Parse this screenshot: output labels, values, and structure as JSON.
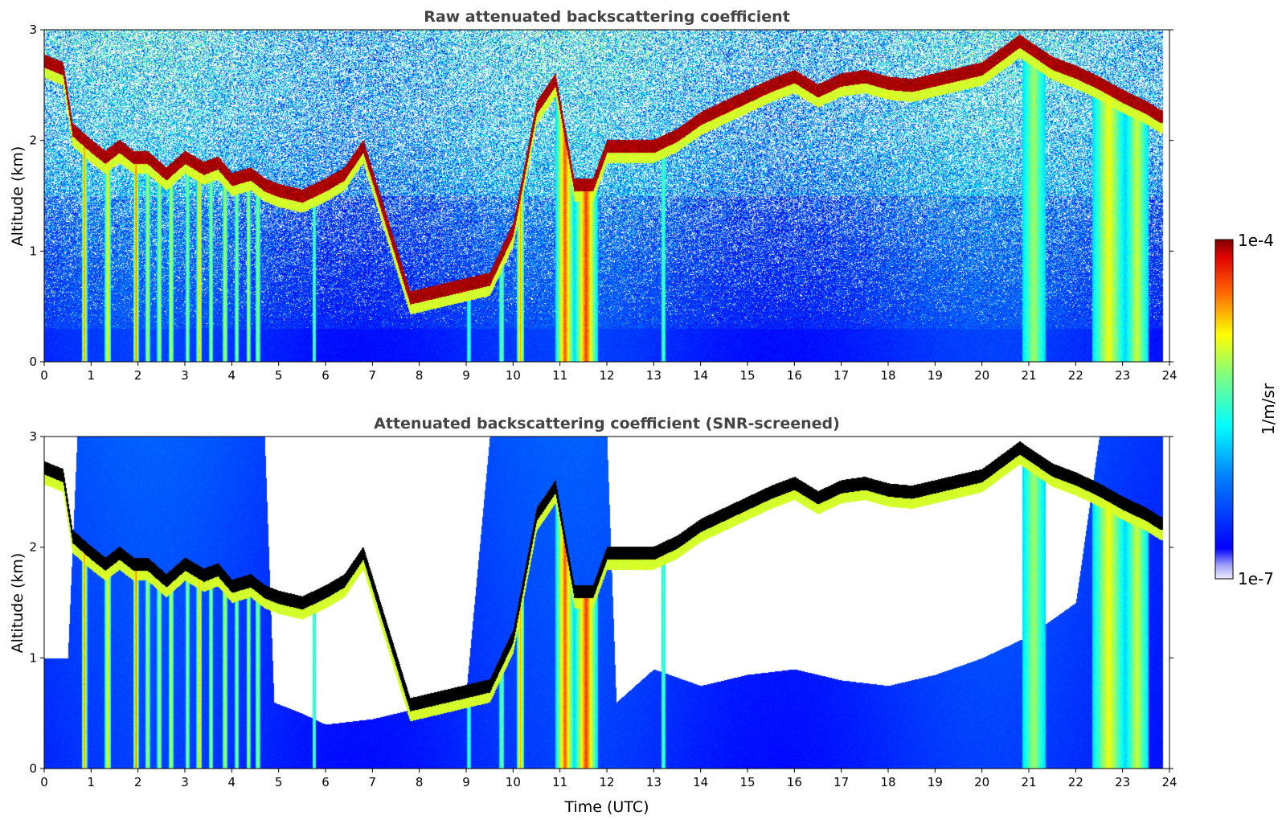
{
  "chart_data": [
    {
      "type": "heatmap",
      "title": "Raw attenuated backscattering coefficient",
      "xlabel": "",
      "ylabel": "Altitude (km)",
      "xlim": [
        0,
        24
      ],
      "ylim": [
        0,
        3
      ],
      "xticks": [
        "0",
        "1",
        "2",
        "3",
        "4",
        "5",
        "6",
        "7",
        "8",
        "9",
        "10",
        "11",
        "12",
        "13",
        "14",
        "15",
        "16",
        "17",
        "18",
        "19",
        "20",
        "21",
        "22",
        "23",
        "24"
      ],
      "yticks": [
        "0",
        "1",
        "2",
        "3"
      ],
      "screened": false
    },
    {
      "type": "heatmap",
      "title": "Attenuated backscattering coefficient (SNR-screened)",
      "xlabel": "Time (UTC)",
      "ylabel": "Altitude (km)",
      "xlim": [
        0,
        24
      ],
      "ylim": [
        0,
        3
      ],
      "xticks": [
        "0",
        "1",
        "2",
        "3",
        "4",
        "5",
        "6",
        "7",
        "8",
        "9",
        "10",
        "11",
        "12",
        "13",
        "14",
        "15",
        "16",
        "17",
        "18",
        "19",
        "20",
        "21",
        "22",
        "23",
        "24"
      ],
      "yticks": [
        "0",
        "1",
        "2",
        "3"
      ],
      "screened": true
    }
  ],
  "colorbar": {
    "label": "1/m/sr",
    "max_label": "1e-4",
    "min_label": "1e-7",
    "colormap": "jet",
    "scale": "log"
  },
  "scene": {
    "cloud_layer": [
      [
        0.0,
        2.72
      ],
      [
        0.4,
        2.65
      ],
      [
        0.6,
        2.1
      ],
      [
        1.0,
        1.95
      ],
      [
        1.3,
        1.85
      ],
      [
        1.6,
        1.95
      ],
      [
        1.9,
        1.85
      ],
      [
        2.2,
        1.85
      ],
      [
        2.6,
        1.7
      ],
      [
        3.0,
        1.85
      ],
      [
        3.4,
        1.75
      ],
      [
        3.7,
        1.8
      ],
      [
        4.0,
        1.65
      ],
      [
        4.4,
        1.7
      ],
      [
        4.7,
        1.6
      ],
      [
        5.0,
        1.55
      ],
      [
        5.5,
        1.5
      ],
      [
        6.0,
        1.6
      ],
      [
        6.4,
        1.7
      ],
      [
        6.8,
        1.95
      ],
      [
        7.8,
        0.58
      ],
      [
        8.5,
        0.65
      ],
      [
        9.0,
        0.7
      ],
      [
        9.5,
        0.75
      ],
      [
        10.0,
        1.2
      ],
      [
        10.5,
        2.3
      ],
      [
        10.9,
        2.55
      ],
      [
        11.3,
        1.6
      ],
      [
        11.7,
        1.6
      ],
      [
        12.0,
        1.95
      ],
      [
        13.0,
        1.95
      ],
      [
        13.5,
        2.05
      ],
      [
        14.0,
        2.2
      ],
      [
        14.5,
        2.3
      ],
      [
        15.0,
        2.4
      ],
      [
        15.5,
        2.5
      ],
      [
        16.0,
        2.58
      ],
      [
        16.5,
        2.45
      ],
      [
        17.0,
        2.55
      ],
      [
        17.5,
        2.58
      ],
      [
        18.0,
        2.52
      ],
      [
        18.5,
        2.5
      ],
      [
        19.0,
        2.55
      ],
      [
        20.0,
        2.65
      ],
      [
        20.8,
        2.9
      ],
      [
        21.5,
        2.7
      ],
      [
        22.0,
        2.62
      ],
      [
        22.5,
        2.52
      ],
      [
        23.0,
        2.4
      ],
      [
        23.5,
        2.3
      ],
      [
        23.8,
        2.22
      ]
    ],
    "precip_shafts": [
      [
        0.85,
        0.06,
        4.0
      ],
      [
        1.35,
        0.07,
        3.2
      ],
      [
        1.95,
        0.06,
        4.2
      ],
      [
        2.2,
        0.05,
        2.6
      ],
      [
        2.45,
        0.05,
        2.4
      ],
      [
        2.7,
        0.05,
        2.8
      ],
      [
        3.05,
        0.04,
        2.2
      ],
      [
        3.3,
        0.06,
        3.6
      ],
      [
        3.55,
        0.04,
        2.4
      ],
      [
        3.85,
        0.05,
        2.6
      ],
      [
        4.1,
        0.04,
        2.2
      ],
      [
        4.35,
        0.04,
        2.6
      ],
      [
        4.55,
        0.05,
        2.2
      ],
      [
        5.75,
        0.04,
        1.6
      ],
      [
        9.05,
        0.04,
        1.2
      ],
      [
        9.75,
        0.05,
        1.8
      ],
      [
        10.15,
        0.08,
        3.6
      ],
      [
        11.1,
        0.2,
        4.2
      ],
      [
        11.55,
        0.25,
        4.4
      ],
      [
        13.2,
        0.05,
        1.4
      ],
      [
        21.1,
        0.25,
        2.0
      ],
      [
        22.7,
        0.35,
        2.8
      ],
      [
        23.3,
        0.25,
        2.4
      ]
    ],
    "screened_mask": [
      [
        0,
        1.0
      ],
      [
        0.5,
        1.0
      ],
      [
        0.7,
        3.0
      ],
      [
        4.7,
        3.0
      ],
      [
        4.9,
        0.6
      ],
      [
        5.5,
        0.5
      ],
      [
        6.0,
        0.4
      ],
      [
        7.0,
        0.45
      ],
      [
        8.0,
        0.55
      ],
      [
        9.0,
        0.7
      ],
      [
        9.5,
        3.0
      ],
      [
        10.6,
        3.0
      ],
      [
        10.8,
        3.0
      ],
      [
        12.0,
        3.0
      ],
      [
        12.2,
        0.6
      ],
      [
        13.0,
        0.9
      ],
      [
        14.0,
        0.75
      ],
      [
        15.0,
        0.85
      ],
      [
        16.0,
        0.9
      ],
      [
        17.0,
        0.8
      ],
      [
        18.0,
        0.75
      ],
      [
        19.0,
        0.85
      ],
      [
        20.0,
        1.0
      ],
      [
        21.0,
        1.2
      ],
      [
        22.0,
        1.5
      ],
      [
        22.5,
        3.0
      ],
      [
        24,
        3.0
      ]
    ]
  }
}
